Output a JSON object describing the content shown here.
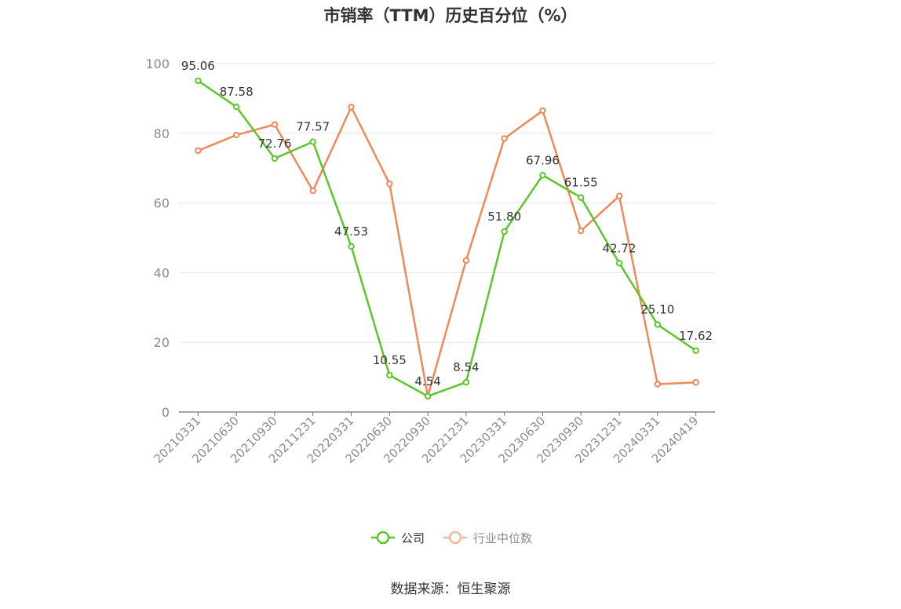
{
  "chart_data": {
    "type": "line",
    "title": "市销率（TTM）历史百分位（%）",
    "categories": [
      "20210331",
      "20210630",
      "20210930",
      "20211231",
      "20220331",
      "20220630",
      "20220930",
      "20221231",
      "20230331",
      "20230630",
      "20230930",
      "20231231",
      "20240331",
      "20240419"
    ],
    "series": [
      {
        "name": "公司",
        "color": "#5cc72b",
        "show_labels": true,
        "values": [
          95.06,
          87.58,
          72.76,
          77.57,
          47.53,
          10.55,
          4.54,
          8.54,
          51.8,
          67.96,
          61.55,
          42.72,
          25.1,
          17.62
        ]
      },
      {
        "name": "行业中位数",
        "color": "#f0885a",
        "legend_color": "#f7b79a",
        "show_labels": false,
        "values": [
          75.0,
          79.5,
          82.5,
          63.5,
          87.5,
          65.5,
          4.5,
          43.5,
          78.5,
          86.5,
          52.0,
          62.0,
          8.0,
          8.5
        ]
      }
    ],
    "yticks": [
      0,
      20,
      40,
      60,
      80,
      100
    ],
    "ylim": [
      0,
      100
    ],
    "grid": true,
    "legend_position": "bottom"
  },
  "source": "数据来源：恒生聚源"
}
